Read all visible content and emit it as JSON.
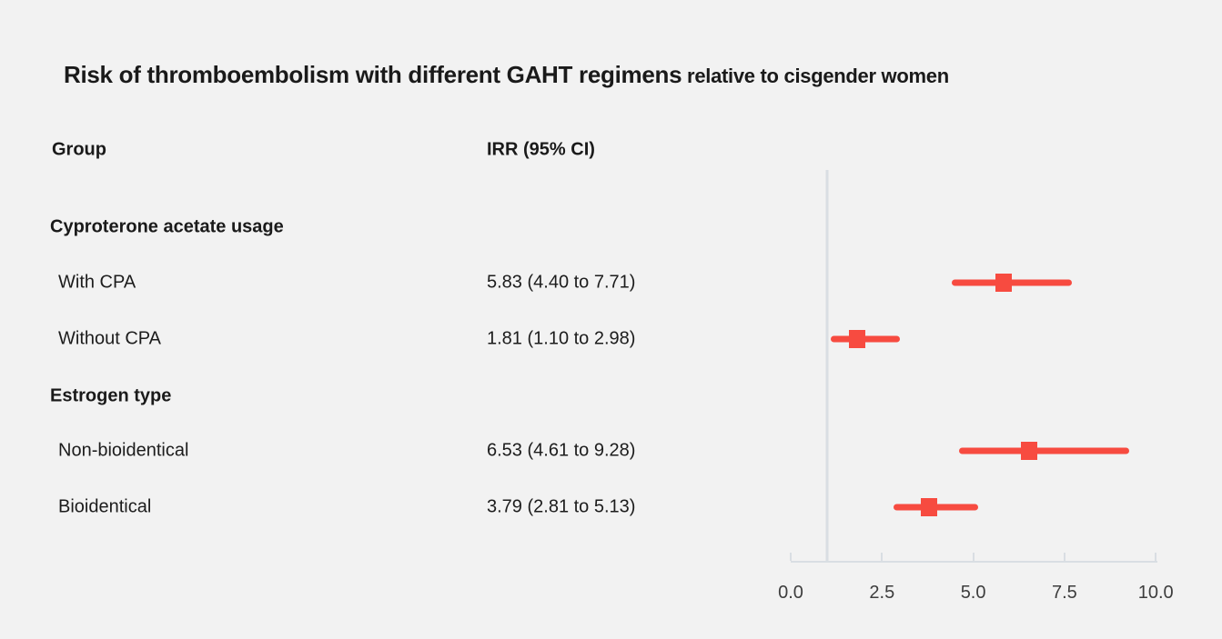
{
  "title": {
    "main": "Risk of thromboembolism with different GAHT regimens",
    "suffix": " relative to cisgender women"
  },
  "columns": {
    "group": "Group",
    "irr": "IRR (95% CI)"
  },
  "chart_data": {
    "type": "forest",
    "title": "Risk of thromboembolism with different GAHT regimens relative to cisgender women",
    "effect_measure": "IRR (95% CI)",
    "reference_value": 1.0,
    "x_axis": {
      "min": 0,
      "max": 10,
      "tick_values": [
        0,
        2.5,
        5,
        7.5,
        10
      ],
      "tick_labels": [
        "0.0",
        "2.5",
        "5.0",
        "7.5",
        "10.0"
      ]
    },
    "rows": [
      {
        "kind": "group",
        "label": "Cyproterone acetate usage"
      },
      {
        "kind": "data",
        "label": "With CPA",
        "display": "5.83 (4.40 to 7.71)",
        "irr": 5.83,
        "ci_low": 4.4,
        "ci_high": 7.71
      },
      {
        "kind": "data",
        "label": "Without CPA",
        "display": "1.81 (1.10 to 2.98)",
        "irr": 1.81,
        "ci_low": 1.1,
        "ci_high": 2.98
      },
      {
        "kind": "group",
        "label": "Estrogen type"
      },
      {
        "kind": "data",
        "label": "Non-bioidentical",
        "display": "6.53 (4.61 to 9.28)",
        "irr": 6.53,
        "ci_low": 4.61,
        "ci_high": 9.28
      },
      {
        "kind": "data",
        "label": "Bioidentical",
        "display": "3.79 (2.81 to 5.13)",
        "irr": 3.79,
        "ci_low": 2.81,
        "ci_high": 5.13
      }
    ],
    "colors": {
      "marker": "#f74b40",
      "axis": "#d9dee3",
      "background": "#f2f2f2"
    }
  }
}
